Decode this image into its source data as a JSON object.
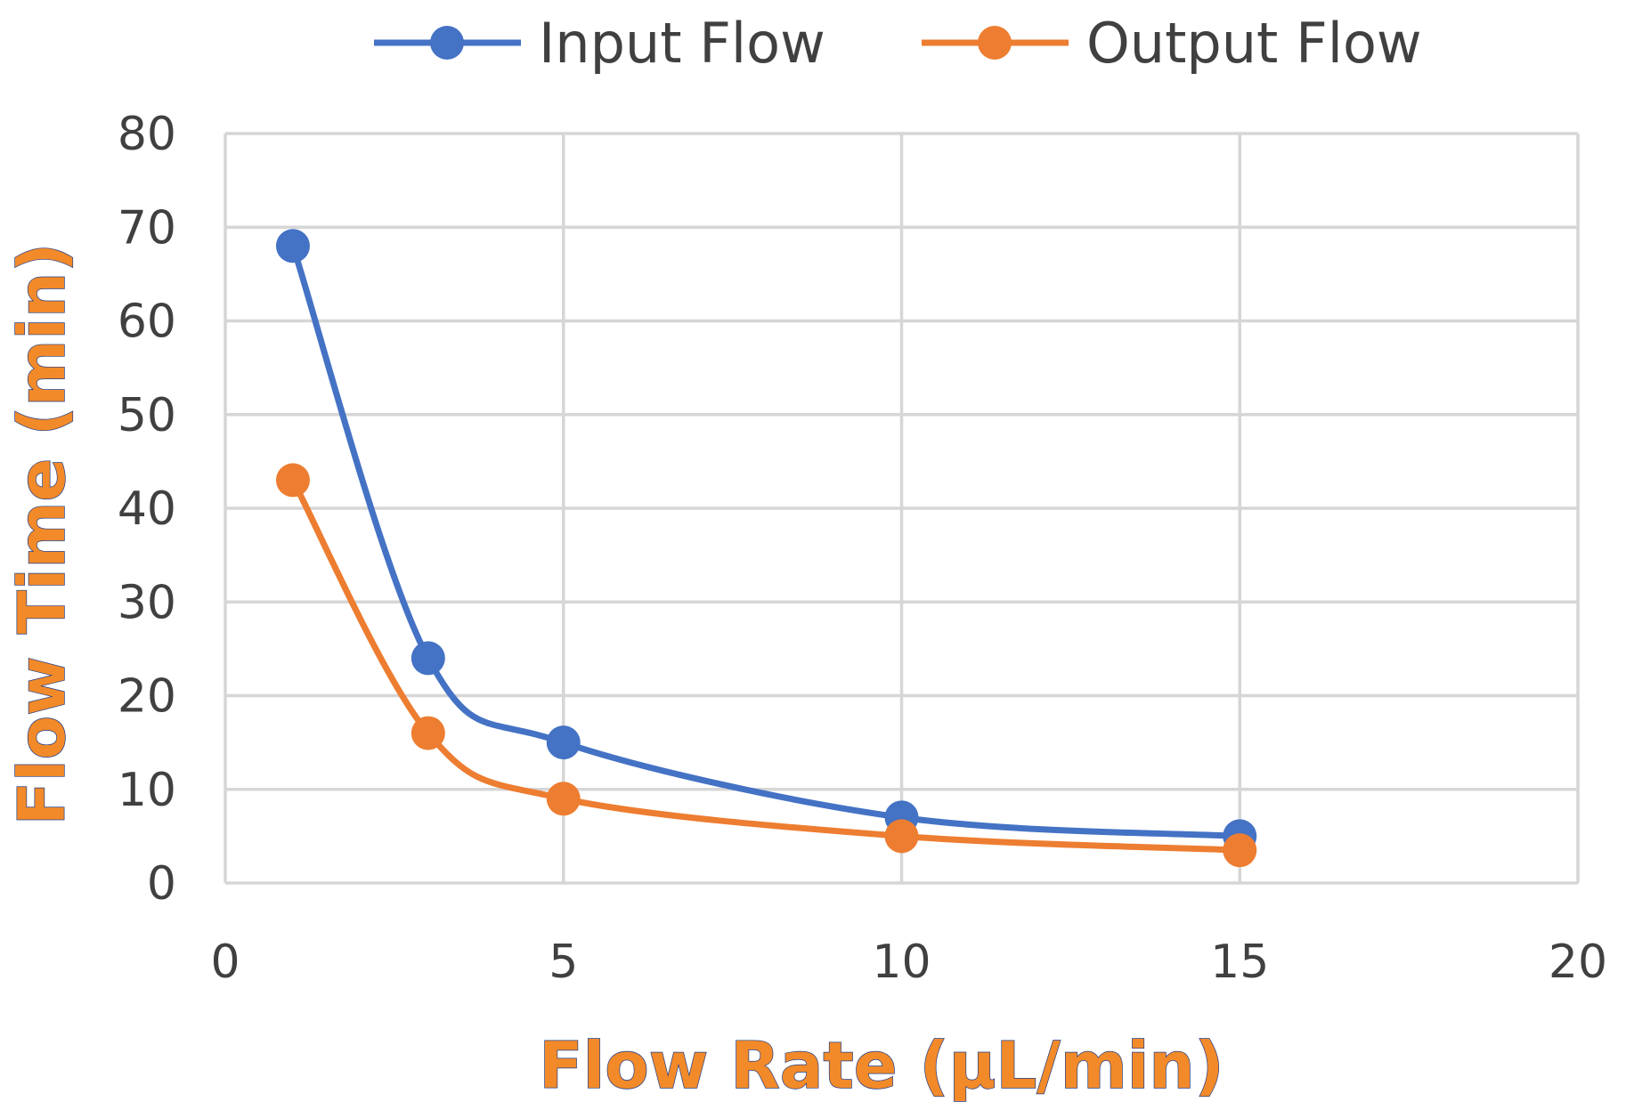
{
  "chart_data": {
    "type": "line",
    "smooth": true,
    "xlabel": "Flow Rate (μL/min)",
    "ylabel": "Flow Time (min)",
    "xlim": [
      0,
      20
    ],
    "ylim": [
      0,
      80
    ],
    "xticks": [
      "0",
      "5",
      "10",
      "15",
      "20"
    ],
    "yticks": [
      "0",
      "10",
      "20",
      "30",
      "40",
      "50",
      "60",
      "70",
      "80"
    ],
    "grid": true,
    "legend_position": "top",
    "series": [
      {
        "name": "Input Flow",
        "color": "#4472c4",
        "x": [
          1,
          3,
          5,
          10,
          15
        ],
        "y": [
          68,
          24,
          15,
          7,
          5
        ]
      },
      {
        "name": "Output Flow",
        "color": "#ed7d31",
        "x": [
          1,
          3,
          5,
          10,
          15
        ],
        "y": [
          43,
          16,
          9,
          5,
          3.5
        ]
      }
    ]
  }
}
